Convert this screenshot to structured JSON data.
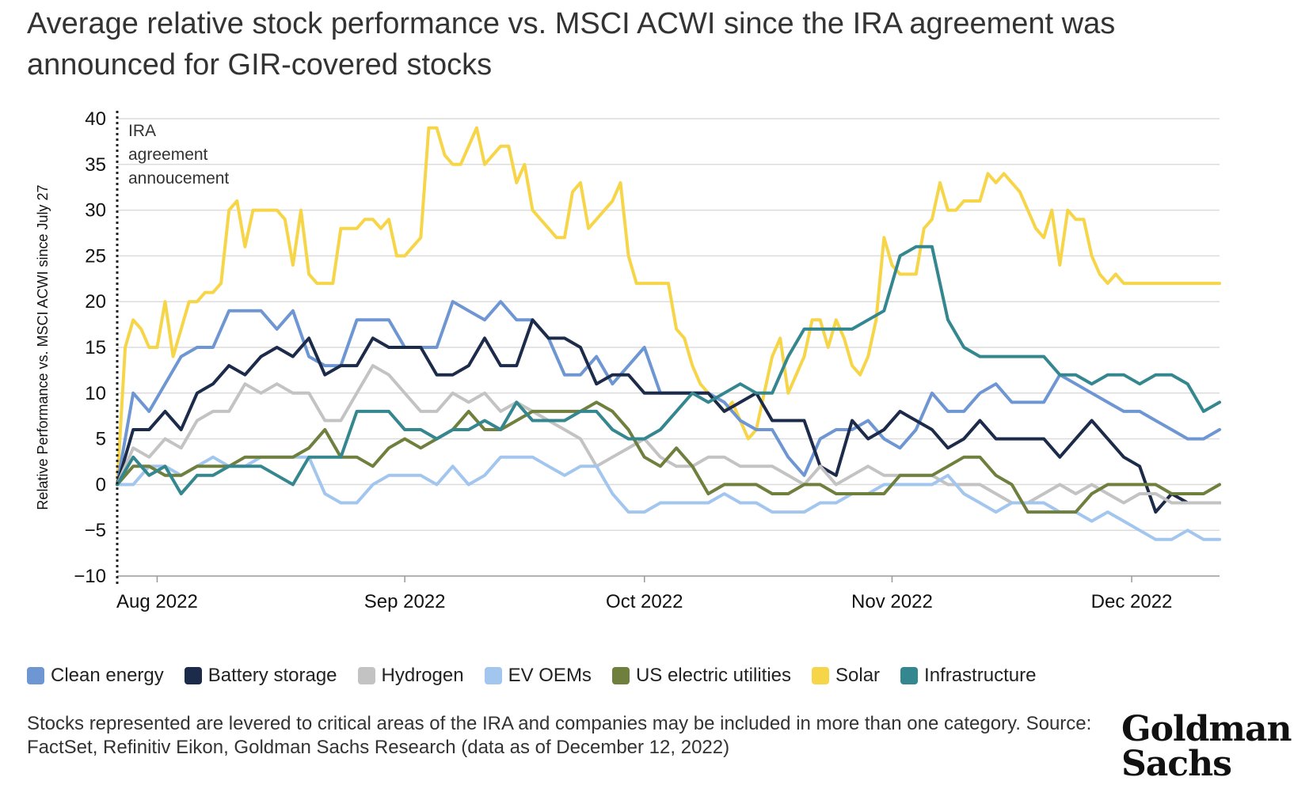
{
  "title": {
    "line1": "Average relative stock performance vs. MSCI ACWI since the IRA agreement was",
    "line2": "announced for GIR-covered stocks"
  },
  "footnote": "Stocks represented are levered to critical areas of the IRA and companies may be included in more than one category. Source: FactSet, Refinitiv Eikon, Goldman Sachs Research (data as of December 12, 2022)",
  "logo": {
    "line1": "Goldman",
    "line2": "Sachs"
  },
  "chart_data": {
    "type": "line",
    "title": "Average relative stock performance vs. MSCI ACWI since the IRA agreement was announced for GIR-covered stocks",
    "xlabel": "",
    "ylabel": "Relative Performance vs. MSCI ACWI since July 27",
    "ylim": [
      -10,
      40
    ],
    "yticks": [
      -10,
      -5,
      0,
      5,
      10,
      15,
      20,
      25,
      30,
      35,
      40
    ],
    "xlim": [
      "2022-07-27",
      "2022-12-12"
    ],
    "xticks": [
      {
        "date": "2022-08-01",
        "label": "Aug 2022"
      },
      {
        "date": "2022-09-01",
        "label": "Sep 2022"
      },
      {
        "date": "2022-10-01",
        "label": "Oct 2022"
      },
      {
        "date": "2022-11-01",
        "label": "Nov 2022"
      },
      {
        "date": "2022-12-01",
        "label": "Dec 2022"
      }
    ],
    "grid": true,
    "annotation": {
      "date": "2022-07-27",
      "lines": [
        "IRA",
        "agreement",
        "annoucement"
      ]
    },
    "legend_position": "bottom",
    "series": [
      {
        "name": "Solar",
        "color": "#F6D548",
        "x": [
          0,
          1,
          2,
          3,
          4,
          5,
          6,
          7,
          8,
          9,
          10,
          11,
          12,
          13,
          14,
          15,
          16,
          17,
          18,
          19,
          20,
          21,
          22,
          23,
          24,
          25,
          26,
          27,
          28,
          29,
          30,
          31,
          32,
          33,
          34,
          35,
          36,
          37,
          38,
          39,
          40,
          41,
          42,
          43,
          44,
          45,
          46,
          47,
          48,
          49,
          50,
          51,
          52,
          53,
          54,
          55,
          56,
          57,
          58,
          59,
          60,
          61,
          62,
          63,
          64,
          65,
          66,
          67,
          68,
          69,
          70,
          71,
          72,
          73,
          74,
          75,
          76,
          77,
          78,
          79,
          80,
          81,
          82,
          83,
          84,
          85,
          86,
          87,
          88,
          89,
          90,
          91,
          92,
          93,
          94,
          95,
          96,
          97,
          98,
          99,
          100,
          101,
          102,
          103,
          104,
          105,
          106,
          107,
          108,
          109,
          110,
          111,
          112,
          113,
          114,
          115,
          116,
          117,
          118,
          119,
          120,
          121,
          122,
          123,
          124,
          125,
          126,
          127,
          128,
          129,
          130,
          131,
          132,
          133,
          134,
          135,
          136,
          137,
          138
        ],
        "y": [
          0,
          15,
          18,
          17,
          15,
          15,
          20,
          14,
          17,
          20,
          20,
          21,
          21,
          22,
          30,
          31,
          26,
          30,
          30,
          30,
          30,
          29,
          24,
          30,
          23,
          22,
          22,
          22,
          28,
          28,
          28,
          29,
          29,
          28,
          29,
          25,
          25,
          26,
          27,
          39,
          39,
          36,
          35,
          35,
          37,
          39,
          35,
          36,
          37,
          37,
          33,
          35,
          30,
          29,
          28,
          27,
          27,
          32,
          33,
          28,
          29,
          30,
          31,
          33,
          25,
          22,
          22,
          22,
          22,
          22,
          17,
          16,
          13,
          11,
          10,
          9,
          8,
          9,
          7,
          5,
          6,
          10,
          14,
          16,
          10,
          12,
          14,
          18,
          18,
          15,
          18,
          16,
          13,
          12,
          14,
          18,
          27,
          24,
          23,
          23,
          23,
          28,
          29,
          33,
          30,
          30,
          31,
          31,
          31,
          34,
          33,
          34,
          33,
          32,
          30,
          28,
          27,
          30,
          24,
          30,
          29,
          29,
          25,
          23,
          22,
          23,
          22,
          22,
          22,
          22,
          22,
          22,
          22,
          22,
          22,
          22,
          22,
          22,
          22
        ]
      },
      {
        "name": "Clean energy",
        "color": "#6E96D2",
        "x": [
          0,
          2,
          4,
          6,
          8,
          10,
          12,
          14,
          16,
          18,
          20,
          22,
          24,
          26,
          28,
          30,
          32,
          34,
          36,
          38,
          40,
          42,
          44,
          46,
          48,
          50,
          52,
          54,
          56,
          58,
          60,
          62,
          64,
          66,
          68,
          70,
          72,
          74,
          76,
          78,
          80,
          82,
          84,
          86,
          88,
          90,
          92,
          94,
          96,
          98,
          100,
          102,
          104,
          106,
          108,
          110,
          112,
          114,
          116,
          118,
          120,
          122,
          124,
          126,
          128,
          130,
          132,
          134,
          136,
          138
        ],
        "y": [
          0,
          10,
          8,
          11,
          14,
          15,
          15,
          19,
          19,
          19,
          17,
          19,
          14,
          13,
          13,
          18,
          18,
          18,
          15,
          15,
          15,
          20,
          19,
          18,
          20,
          18,
          18,
          16,
          12,
          12,
          14,
          11,
          13,
          15,
          10,
          10,
          10,
          10,
          9,
          7,
          6,
          6,
          3,
          1,
          5,
          6,
          6,
          7,
          5,
          4,
          6,
          10,
          8,
          8,
          10,
          11,
          9,
          9,
          9,
          12,
          11,
          10,
          9,
          8,
          8,
          7,
          6,
          5,
          5,
          6
        ]
      },
      {
        "name": "Battery storage",
        "color": "#1D2B4A",
        "x": [
          0,
          2,
          4,
          6,
          8,
          10,
          12,
          14,
          16,
          18,
          20,
          22,
          24,
          26,
          28,
          30,
          32,
          34,
          36,
          38,
          40,
          42,
          44,
          46,
          48,
          50,
          52,
          54,
          56,
          58,
          60,
          62,
          64,
          66,
          68,
          70,
          72,
          74,
          76,
          78,
          80,
          82,
          84,
          86,
          88,
          90,
          92,
          94,
          96,
          98,
          100,
          102,
          104,
          106,
          108,
          110,
          112,
          114,
          116,
          118,
          120,
          122,
          124,
          126,
          128,
          130,
          132,
          134,
          136,
          138
        ],
        "y": [
          0,
          6,
          6,
          8,
          6,
          10,
          11,
          13,
          12,
          14,
          15,
          14,
          16,
          12,
          13,
          13,
          16,
          15,
          15,
          15,
          12,
          12,
          13,
          16,
          13,
          13,
          18,
          16,
          16,
          15,
          11,
          12,
          12,
          10,
          10,
          10,
          10,
          10,
          8,
          9,
          10,
          7,
          7,
          7,
          2,
          1,
          7,
          5,
          6,
          8,
          7,
          6,
          4,
          5,
          7,
          5,
          5,
          5,
          5,
          3,
          5,
          7,
          5,
          3,
          2,
          -3,
          -1,
          -2,
          -2,
          -2
        ]
      },
      {
        "name": "Hydrogen",
        "color": "#C3C3C3",
        "x": [
          0,
          2,
          4,
          6,
          8,
          10,
          12,
          14,
          16,
          18,
          20,
          22,
          24,
          26,
          28,
          30,
          32,
          34,
          36,
          38,
          40,
          42,
          44,
          46,
          48,
          50,
          52,
          54,
          56,
          58,
          60,
          62,
          64,
          66,
          68,
          70,
          72,
          74,
          76,
          78,
          80,
          82,
          84,
          86,
          88,
          90,
          92,
          94,
          96,
          98,
          100,
          102,
          104,
          106,
          108,
          110,
          112,
          114,
          116,
          118,
          120,
          122,
          124,
          126,
          128,
          130,
          132,
          134,
          136,
          138
        ],
        "y": [
          0,
          4,
          3,
          5,
          4,
          7,
          8,
          8,
          11,
          10,
          11,
          10,
          10,
          7,
          7,
          10,
          13,
          12,
          10,
          8,
          8,
          10,
          9,
          10,
          8,
          9,
          8,
          7,
          6,
          5,
          2,
          3,
          4,
          5,
          3,
          2,
          2,
          3,
          3,
          2,
          2,
          2,
          1,
          0,
          2,
          0,
          1,
          2,
          1,
          1,
          1,
          1,
          0,
          0,
          0,
          -1,
          -2,
          -2,
          -1,
          0,
          -1,
          0,
          -1,
          -2,
          -1,
          -1,
          -2,
          -2,
          -2,
          -2
        ]
      },
      {
        "name": "EV OEMs",
        "color": "#A3C6EE",
        "x": [
          0,
          2,
          4,
          6,
          8,
          10,
          12,
          14,
          16,
          18,
          20,
          22,
          24,
          26,
          28,
          30,
          32,
          34,
          36,
          38,
          40,
          42,
          44,
          46,
          48,
          50,
          52,
          54,
          56,
          58,
          60,
          62,
          64,
          66,
          68,
          70,
          72,
          74,
          76,
          78,
          80,
          82,
          84,
          86,
          88,
          90,
          92,
          94,
          96,
          98,
          100,
          102,
          104,
          106,
          108,
          110,
          112,
          114,
          116,
          118,
          120,
          122,
          124,
          126,
          128,
          130,
          132,
          134,
          136,
          138
        ],
        "y": [
          0,
          0,
          2,
          2,
          1,
          2,
          3,
          2,
          2,
          3,
          3,
          3,
          3,
          -1,
          -2,
          -2,
          0,
          1,
          1,
          1,
          0,
          2,
          0,
          1,
          3,
          3,
          3,
          2,
          1,
          2,
          2,
          -1,
          -3,
          -3,
          -2,
          -2,
          -2,
          -2,
          -1,
          -2,
          -2,
          -3,
          -3,
          -3,
          -2,
          -2,
          -1,
          -1,
          0,
          0,
          0,
          0,
          1,
          -1,
          -2,
          -3,
          -2,
          -2,
          -2,
          -3,
          -3,
          -4,
          -3,
          -4,
          -5,
          -6,
          -6,
          -5,
          -6,
          -6
        ]
      },
      {
        "name": "US electric utilities",
        "color": "#6E7F3E",
        "x": [
          0,
          2,
          4,
          6,
          8,
          10,
          12,
          14,
          16,
          18,
          20,
          22,
          24,
          26,
          28,
          30,
          32,
          34,
          36,
          38,
          40,
          42,
          44,
          46,
          48,
          50,
          52,
          54,
          56,
          58,
          60,
          62,
          64,
          66,
          68,
          70,
          72,
          74,
          76,
          78,
          80,
          82,
          84,
          86,
          88,
          90,
          92,
          94,
          96,
          98,
          100,
          102,
          104,
          106,
          108,
          110,
          112,
          114,
          116,
          118,
          120,
          122,
          124,
          126,
          128,
          130,
          132,
          134,
          136,
          138
        ],
        "y": [
          0,
          2,
          2,
          1,
          1,
          2,
          2,
          2,
          3,
          3,
          3,
          3,
          4,
          6,
          3,
          3,
          2,
          4,
          5,
          4,
          5,
          6,
          8,
          6,
          6,
          7,
          8,
          8,
          8,
          8,
          9,
          8,
          6,
          3,
          2,
          4,
          2,
          -1,
          0,
          0,
          0,
          -1,
          -1,
          0,
          0,
          -1,
          -1,
          -1,
          -1,
          1,
          1,
          1,
          2,
          3,
          3,
          1,
          0,
          -3,
          -3,
          -3,
          -3,
          -1,
          0,
          0,
          0,
          0,
          -1,
          -1,
          -1,
          0
        ]
      },
      {
        "name": "Infrastructure",
        "color": "#35878F",
        "x": [
          0,
          2,
          4,
          6,
          8,
          10,
          12,
          14,
          16,
          18,
          20,
          22,
          24,
          26,
          28,
          30,
          32,
          34,
          36,
          38,
          40,
          42,
          44,
          46,
          48,
          50,
          52,
          54,
          56,
          58,
          60,
          62,
          64,
          66,
          68,
          70,
          72,
          74,
          76,
          78,
          80,
          82,
          84,
          86,
          88,
          90,
          92,
          94,
          96,
          98,
          100,
          102,
          104,
          106,
          108,
          110,
          112,
          114,
          116,
          118,
          120,
          122,
          124,
          126,
          128,
          130,
          132,
          134,
          136,
          138
        ],
        "y": [
          0,
          3,
          1,
          2,
          -1,
          1,
          1,
          2,
          2,
          2,
          1,
          0,
          3,
          3,
          3,
          8,
          8,
          8,
          6,
          6,
          5,
          6,
          6,
          7,
          6,
          9,
          7,
          7,
          7,
          8,
          8,
          6,
          5,
          5,
          6,
          8,
          10,
          9,
          10,
          11,
          10,
          10,
          14,
          17,
          17,
          17,
          17,
          18,
          19,
          25,
          26,
          26,
          18,
          15,
          14,
          14,
          14,
          14,
          14,
          12,
          12,
          11,
          12,
          12,
          11,
          12,
          12,
          11,
          8,
          9
        ]
      }
    ]
  }
}
